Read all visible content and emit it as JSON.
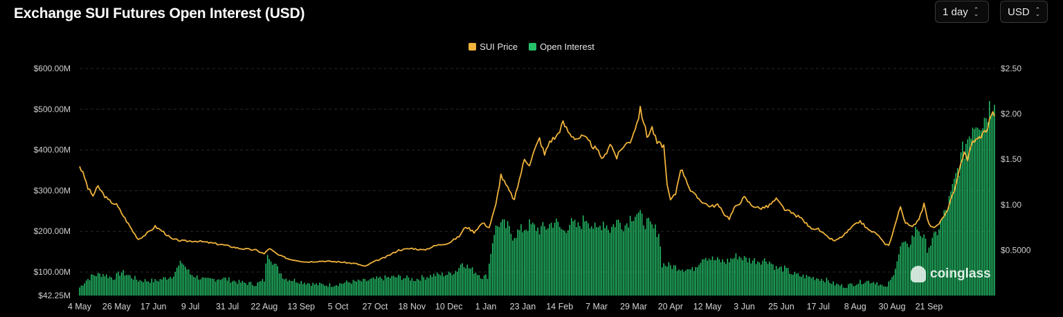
{
  "header": {
    "title": "Exchange SUI Futures Open Interest (USD)",
    "interval_select": "1 day",
    "currency_select": "USD"
  },
  "legend": {
    "price_label": "SUI Price",
    "oi_label": "Open Interest"
  },
  "watermark": {
    "text": "coinglass"
  },
  "colors": {
    "price": "#f0b43c",
    "oi": "#25c26a",
    "grid": "#2a2a2a",
    "background": "#000000"
  },
  "chart_data": {
    "type": "bar+line",
    "x_ticks": [
      "4 May",
      "26 May",
      "17 Jun",
      "9 Jul",
      "31 Jul",
      "22 Aug",
      "13 Sep",
      "5 Oct",
      "27 Oct",
      "18 Nov",
      "10 Dec",
      "1 Jan",
      "23 Jan",
      "14 Feb",
      "7 Mar",
      "29 Mar",
      "20 Apr",
      "12 May",
      "3 Jun",
      "25 Jun",
      "17 Jul",
      "8 Aug",
      "30 Aug",
      "21 Sep"
    ],
    "y_left_ticks": [
      "$42.25M",
      "$100.00M",
      "$200.00M",
      "$300.00M",
      "$400.00M",
      "$500.00M",
      "$600.00M"
    ],
    "y_left_values": [
      42.25,
      100,
      200,
      300,
      400,
      500,
      600
    ],
    "y_right_ticks": [
      "$0.5000",
      "$1.00",
      "$1.50",
      "$2.00",
      "$2.50"
    ],
    "y_right_values": [
      0.5,
      1,
      1.5,
      2,
      2.5
    ],
    "y_left_range": [
      42.25,
      600
    ],
    "y_right_range": [
      0,
      2.5
    ],
    "series": [
      {
        "name": "Open Interest",
        "axis": "left",
        "kind": "bar",
        "anchors": [
          [
            0,
            62
          ],
          [
            4,
            80
          ],
          [
            8,
            92
          ],
          [
            14,
            95
          ],
          [
            20,
            85
          ],
          [
            25,
            100
          ],
          [
            35,
            80
          ],
          [
            45,
            78
          ],
          [
            55,
            90
          ],
          [
            61,
            125
          ],
          [
            66,
            95
          ],
          [
            75,
            80
          ],
          [
            85,
            85
          ],
          [
            95,
            75
          ],
          [
            105,
            70
          ],
          [
            110,
            80
          ],
          [
            112,
            150
          ],
          [
            116,
            120
          ],
          [
            122,
            85
          ],
          [
            130,
            78
          ],
          [
            140,
            70
          ],
          [
            150,
            68
          ],
          [
            160,
            75
          ],
          [
            170,
            78
          ],
          [
            180,
            85
          ],
          [
            190,
            88
          ],
          [
            200,
            82
          ],
          [
            210,
            92
          ],
          [
            220,
            95
          ],
          [
            225,
            105
          ],
          [
            228,
            125
          ],
          [
            232,
            110
          ],
          [
            236,
            100
          ],
          [
            240,
            88
          ],
          [
            243,
            90
          ],
          [
            245,
            150
          ],
          [
            247,
            200
          ],
          [
            250,
            220
          ],
          [
            255,
            210
          ],
          [
            258,
            190
          ],
          [
            262,
            200
          ],
          [
            268,
            215
          ],
          [
            274,
            205
          ],
          [
            278,
            210
          ],
          [
            283,
            225
          ],
          [
            288,
            200
          ],
          [
            292,
            220
          ],
          [
            297,
            210
          ],
          [
            302,
            235
          ],
          [
            308,
            200
          ],
          [
            312,
            225
          ],
          [
            316,
            205
          ],
          [
            320,
            225
          ],
          [
            325,
            215
          ],
          [
            329,
            240
          ],
          [
            332,
            245
          ],
          [
            335,
            230
          ],
          [
            338,
            220
          ],
          [
            342,
            205
          ],
          [
            345,
            200
          ],
          [
            347,
            120
          ],
          [
            352,
            115
          ],
          [
            358,
            110
          ],
          [
            365,
            105
          ],
          [
            372,
            140
          ],
          [
            378,
            130
          ],
          [
            385,
            125
          ],
          [
            392,
            140
          ],
          [
            398,
            130
          ],
          [
            405,
            128
          ],
          [
            410,
            130
          ],
          [
            415,
            110
          ],
          [
            420,
            108
          ],
          [
            425,
            95
          ],
          [
            430,
            90
          ],
          [
            440,
            85
          ],
          [
            445,
            80
          ],
          [
            450,
            70
          ],
          [
            456,
            65
          ],
          [
            462,
            72
          ],
          [
            468,
            78
          ],
          [
            475,
            75
          ],
          [
            480,
            60
          ],
          [
            484,
            85
          ],
          [
            487,
            130
          ],
          [
            490,
            170
          ],
          [
            493,
            160
          ],
          [
            496,
            185
          ],
          [
            499,
            210
          ],
          [
            502,
            190
          ],
          [
            505,
            160
          ],
          [
            508,
            175
          ],
          [
            511,
            200
          ],
          [
            514,
            230
          ],
          [
            517,
            260
          ],
          [
            520,
            300
          ],
          [
            523,
            350
          ],
          [
            526,
            390
          ],
          [
            529,
            430
          ],
          [
            532,
            465
          ],
          [
            535,
            480
          ],
          [
            538,
            470
          ],
          [
            541,
            500
          ],
          [
            543,
            510
          ],
          [
            545,
            540
          ]
        ]
      },
      {
        "name": "SUI Price",
        "axis": "right",
        "kind": "line",
        "anchors": [
          [
            0,
            1.43
          ],
          [
            3,
            1.3
          ],
          [
            5,
            1.18
          ],
          [
            8,
            1.1
          ],
          [
            11,
            1.2
          ],
          [
            14,
            1.12
          ],
          [
            17,
            1.05
          ],
          [
            22,
            1.0
          ],
          [
            27,
            0.85
          ],
          [
            32,
            0.7
          ],
          [
            35,
            0.62
          ],
          [
            40,
            0.68
          ],
          [
            45,
            0.76
          ],
          [
            50,
            0.7
          ],
          [
            55,
            0.62
          ],
          [
            62,
            0.6
          ],
          [
            70,
            0.6
          ],
          [
            78,
            0.58
          ],
          [
            85,
            0.56
          ],
          [
            95,
            0.52
          ],
          [
            105,
            0.5
          ],
          [
            110,
            0.46
          ],
          [
            113,
            0.52
          ],
          [
            118,
            0.45
          ],
          [
            125,
            0.4
          ],
          [
            135,
            0.37
          ],
          [
            145,
            0.38
          ],
          [
            155,
            0.37
          ],
          [
            165,
            0.35
          ],
          [
            170,
            0.32
          ],
          [
            175,
            0.37
          ],
          [
            182,
            0.42
          ],
          [
            190,
            0.5
          ],
          [
            198,
            0.52
          ],
          [
            205,
            0.5
          ],
          [
            212,
            0.55
          ],
          [
            220,
            0.58
          ],
          [
            226,
            0.65
          ],
          [
            230,
            0.76
          ],
          [
            235,
            0.7
          ],
          [
            240,
            0.8
          ],
          [
            244,
            0.75
          ],
          [
            248,
            1.0
          ],
          [
            251,
            1.33
          ],
          [
            253,
            1.25
          ],
          [
            256,
            1.15
          ],
          [
            259,
            1.05
          ],
          [
            262,
            1.28
          ],
          [
            265,
            1.5
          ],
          [
            268,
            1.45
          ],
          [
            271,
            1.6
          ],
          [
            274,
            1.73
          ],
          [
            277,
            1.55
          ],
          [
            280,
            1.7
          ],
          [
            284,
            1.75
          ],
          [
            288,
            1.9
          ],
          [
            292,
            1.78
          ],
          [
            296,
            1.73
          ],
          [
            300,
            1.75
          ],
          [
            304,
            1.68
          ],
          [
            308,
            1.6
          ],
          [
            312,
            1.5
          ],
          [
            316,
            1.68
          ],
          [
            320,
            1.52
          ],
          [
            324,
            1.65
          ],
          [
            328,
            1.7
          ],
          [
            332,
            1.9
          ],
          [
            334,
            2.05
          ],
          [
            336,
            1.92
          ],
          [
            338,
            1.75
          ],
          [
            341,
            1.85
          ],
          [
            344,
            1.68
          ],
          [
            348,
            1.65
          ],
          [
            350,
            1.2
          ],
          [
            352,
            1.05
          ],
          [
            355,
            1.12
          ],
          [
            358,
            1.4
          ],
          [
            361,
            1.3
          ],
          [
            364,
            1.15
          ],
          [
            368,
            1.08
          ],
          [
            372,
            1.02
          ],
          [
            376,
            0.98
          ],
          [
            380,
            1.0
          ],
          [
            384,
            0.9
          ],
          [
            387,
            0.85
          ],
          [
            390,
            0.96
          ],
          [
            393,
            1.02
          ],
          [
            396,
            1.08
          ],
          [
            400,
            1.0
          ],
          [
            405,
            0.96
          ],
          [
            410,
            0.98
          ],
          [
            415,
            1.06
          ],
          [
            420,
            0.95
          ],
          [
            425,
            0.9
          ],
          [
            430,
            0.85
          ],
          [
            435,
            0.75
          ],
          [
            440,
            0.73
          ],
          [
            445,
            0.65
          ],
          [
            450,
            0.6
          ],
          [
            455,
            0.66
          ],
          [
            460,
            0.75
          ],
          [
            465,
            0.82
          ],
          [
            470,
            0.72
          ],
          [
            475,
            0.68
          ],
          [
            479,
            0.58
          ],
          [
            482,
            0.55
          ],
          [
            485,
            0.73
          ],
          [
            489,
            0.98
          ],
          [
            492,
            0.8
          ],
          [
            496,
            0.75
          ],
          [
            500,
            0.85
          ],
          [
            503,
            1.0
          ],
          [
            506,
            0.78
          ],
          [
            510,
            0.75
          ],
          [
            513,
            0.82
          ],
          [
            516,
            0.9
          ],
          [
            519,
            1.05
          ],
          [
            522,
            1.2
          ],
          [
            525,
            1.45
          ],
          [
            527,
            1.6
          ],
          [
            529,
            1.5
          ],
          [
            532,
            1.7
          ],
          [
            535,
            1.72
          ],
          [
            538,
            1.78
          ],
          [
            541,
            1.85
          ],
          [
            543,
            2.0
          ]
        ]
      }
    ],
    "n_days": 546,
    "legend_position": "top-center",
    "grid": "horizontal-dashed"
  }
}
